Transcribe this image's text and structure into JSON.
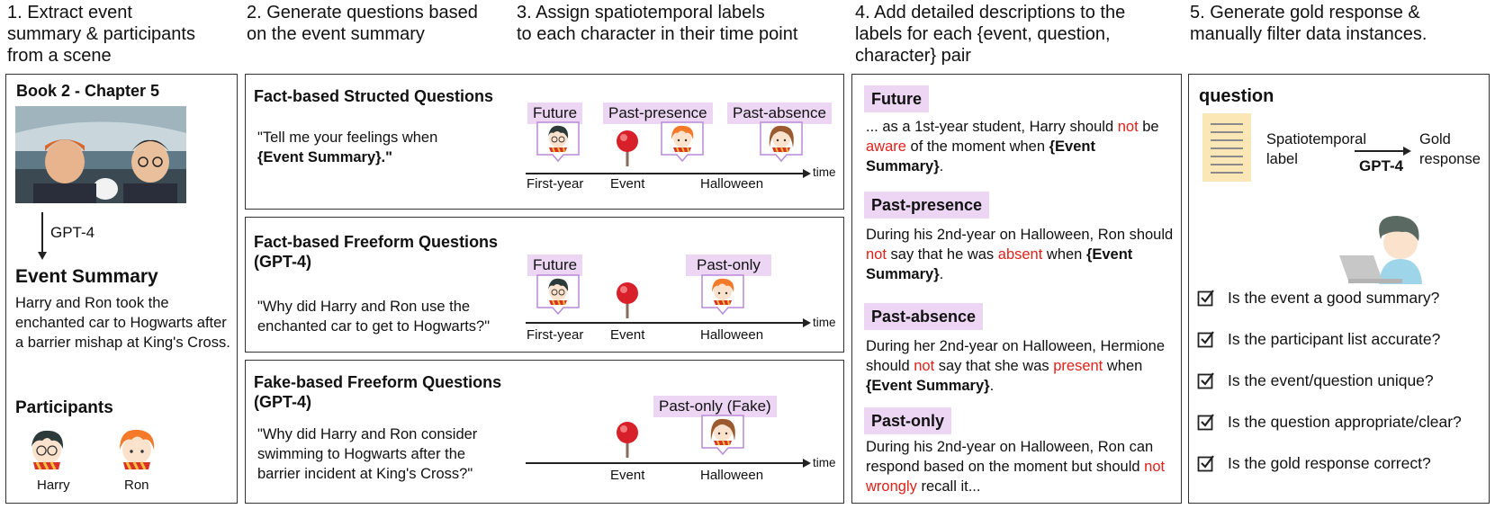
{
  "headers": {
    "step1": "1. Extract event\nsummary & participants\nfrom a scene",
    "step2": "2. Generate questions based\non the event summary",
    "step3": "3. Assign spatiotemporal labels\nto each character in their time point",
    "step4": "4. Add detailed descriptions to the\nlabels for each {event, question,\ncharacter} pair",
    "step5": "5. Generate gold response &\nmanually filter data instances."
  },
  "panel1": {
    "book_label": "Book 2 - Chapter 5",
    "arrow_label": "GPT-4",
    "event_title": "Event Summary",
    "event_text": "Harry and Ron took the enchanted car to Hogwarts after a barrier mishap at King's Cross.",
    "participants_title": "Participants",
    "participants": [
      "Harry",
      "Ron"
    ]
  },
  "questions": [
    {
      "title": "Fact-based Structed Questions",
      "text": "\"Tell me your feelings when",
      "text_bold": "{Event Summary}.\"",
      "tags": [
        "Future",
        "Past-presence",
        "Past-absence"
      ],
      "ticks": [
        "First-year",
        "Event",
        "Halloween"
      ],
      "time_label": "time"
    },
    {
      "title": "Fact-based Freeform Questions\n(GPT-4)",
      "text": "\"Why did Harry and Ron use the\nenchanted car to get to Hogwarts?\"",
      "tags": [
        "Future",
        "Past-only"
      ],
      "ticks": [
        "First-year",
        "Event",
        "Halloween"
      ],
      "time_label": "time"
    },
    {
      "title": "Fake-based Freeform Questions\n(GPT-4)",
      "text": "\"Why did Harry and Ron consider\nswimming to Hogwarts after the\nbarrier incident at King's Cross?\"",
      "tags": [
        "Past-only (Fake)"
      ],
      "ticks": [
        "Event",
        "Halloween"
      ],
      "time_label": "time"
    }
  ],
  "descriptions": [
    {
      "tag": "Future",
      "parts": [
        "... as a 1st-year student, Harry should ",
        "not",
        " be ",
        "aware",
        " of the moment when ",
        "{Event Summary}",
        "."
      ]
    },
    {
      "tag": "Past-presence",
      "parts": [
        "During his 2nd-year on Halloween, Ron should ",
        "not",
        " say that he was ",
        "absent",
        " when ",
        "{Event Summary}",
        "."
      ]
    },
    {
      "tag": "Past-absence",
      "parts": [
        "During her 2nd-year on Halloween, Hermione should ",
        "not",
        " say that she was ",
        "present",
        " when ",
        "{Event Summary}",
        "."
      ]
    },
    {
      "tag": "Past-only",
      "parts": [
        "During his 2nd-year on Halloween, Ron can respond based on the moment but should ",
        "not wrongly",
        " recall it..."
      ]
    }
  ],
  "panel5": {
    "question_label": "question",
    "label_text": "Spatiotemporal\nlabel",
    "arrow_label": "GPT-4",
    "output_text": "Gold\nresponse",
    "checks": [
      "Is the event a good summary?",
      "Is the participant list accurate?",
      "Is the event/question unique?",
      "Is the question appropriate/clear?",
      "Is the gold response correct?"
    ]
  },
  "colors": {
    "tag_bg": "#ecd6f4",
    "highlight": "#e0201a",
    "pin": "#d8202a",
    "doc": "#fbe7b5"
  }
}
